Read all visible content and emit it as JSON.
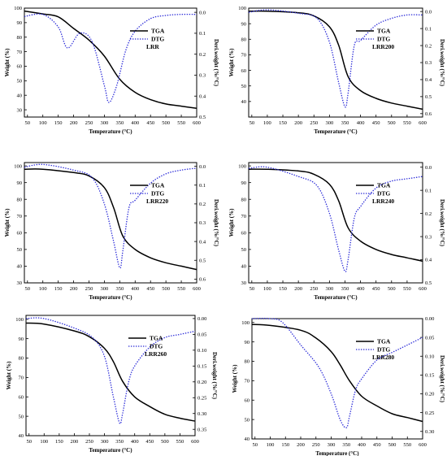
{
  "chart_data": [
    {
      "type": "line",
      "sample_label": "LRR",
      "xlabel": "Temperature (°C)",
      "ylabel": "Weight (%)",
      "y2label": "Deri.weight (%/°C)",
      "xlim": [
        40,
        600
      ],
      "xticks": [
        50,
        100,
        150,
        200,
        250,
        300,
        350,
        400,
        450,
        500,
        550,
        600
      ],
      "ylim": [
        25,
        100
      ],
      "yticks": [
        30,
        40,
        50,
        60,
        70,
        80,
        90,
        100
      ],
      "y2lim": [
        -0.02,
        0.5
      ],
      "y2ticks": [
        {
          "v": 0.0,
          "label": "0.0"
        },
        {
          "v": 0.1,
          "label": "0.1"
        },
        {
          "v": 0.2,
          "label": "0.2"
        },
        {
          "v": 0.3,
          "label": "0.3"
        },
        {
          "v": 0.4,
          "label": "0.4"
        },
        {
          "v": 0.5,
          "label": "0.5"
        }
      ],
      "y2_inverted": true,
      "legend": [
        "TGA",
        "DTG"
      ],
      "series": [
        {
          "name": "TGA",
          "axis": "left",
          "color": "#000000",
          "dash": "solid",
          "x": [
            40,
            100,
            150,
            200,
            250,
            300,
            350,
            400,
            450,
            500,
            550,
            600
          ],
          "y": [
            98,
            96,
            94,
            86,
            78,
            67,
            51,
            42,
            37,
            34,
            32.5,
            31
          ]
        },
        {
          "name": "DTG",
          "axis": "right",
          "color": "#2a2ad8",
          "dash": "dotted",
          "x": [
            40,
            100,
            150,
            180,
            220,
            260,
            300,
            315,
            340,
            370,
            400,
            450,
            500,
            550,
            600
          ],
          "y": [
            0.02,
            0.01,
            0.07,
            0.17,
            0.1,
            0.14,
            0.35,
            0.43,
            0.35,
            0.18,
            0.09,
            0.03,
            0.015,
            0.01,
            0.01
          ]
        }
      ]
    },
    {
      "type": "line",
      "sample_label": "LRR200",
      "xlabel": "Temperature (°C)",
      "ylabel": "Weight (%)",
      "y2label": "Deri.weight (%/°C)",
      "xlim": [
        40,
        600
      ],
      "xticks": [
        50,
        100,
        150,
        200,
        250,
        300,
        350,
        400,
        450,
        500,
        550,
        600
      ],
      "ylim": [
        30,
        100
      ],
      "yticks": [
        40,
        50,
        60,
        70,
        80,
        90,
        100
      ],
      "y2lim": [
        -0.02,
        0.62
      ],
      "y2ticks": [
        {
          "v": 0.0,
          "label": "0.0"
        },
        {
          "v": 0.1,
          "label": "0.1"
        },
        {
          "v": 0.2,
          "label": "0.2"
        },
        {
          "v": 0.3,
          "label": "0.3"
        },
        {
          "v": 0.4,
          "label": "0.4"
        },
        {
          "v": 0.5,
          "label": "0.5"
        },
        {
          "v": 0.6,
          "label": "0.6"
        }
      ],
      "y2_inverted": true,
      "legend": [
        "TGA",
        "DTG"
      ],
      "series": [
        {
          "name": "TGA",
          "axis": "left",
          "color": "#000000",
          "dash": "solid",
          "x": [
            40,
            100,
            200,
            250,
            300,
            330,
            360,
            400,
            450,
            500,
            550,
            600
          ],
          "y": [
            98,
            98,
            97,
            95,
            88,
            76,
            56,
            47,
            42,
            39,
            37,
            35
          ]
        },
        {
          "name": "DTG",
          "axis": "right",
          "color": "#2a2ad8",
          "dash": "dotted",
          "x": [
            40,
            100,
            200,
            260,
            300,
            330,
            350,
            360,
            380,
            400,
            450,
            500,
            550,
            600
          ],
          "y": [
            0.005,
            -0.01,
            0.01,
            0.04,
            0.18,
            0.42,
            0.56,
            0.48,
            0.2,
            0.17,
            0.08,
            0.04,
            0.02,
            0.02
          ]
        }
      ]
    },
    {
      "type": "line",
      "sample_label": "LRR220",
      "xlabel": "Temperature (°C)",
      "ylabel": "Weight (%)",
      "y2label": "Deri.weight (%/°C)",
      "xlim": [
        40,
        600
      ],
      "xticks": [
        50,
        100,
        150,
        200,
        250,
        300,
        350,
        400,
        450,
        500,
        550,
        600
      ],
      "ylim": [
        30,
        102
      ],
      "yticks": [
        30,
        40,
        50,
        60,
        70,
        80,
        90,
        100
      ],
      "y2lim": [
        -0.02,
        0.62
      ],
      "y2ticks": [
        {
          "v": 0.0,
          "label": "0.0"
        },
        {
          "v": 0.1,
          "label": "0.1"
        },
        {
          "v": 0.2,
          "label": "0.2"
        },
        {
          "v": 0.3,
          "label": "0.3"
        },
        {
          "v": 0.4,
          "label": "0.4"
        },
        {
          "v": 0.5,
          "label": "0.5"
        },
        {
          "v": 0.6,
          "label": "0.6"
        }
      ],
      "y2_inverted": true,
      "legend": [
        "TGA",
        "DTG"
      ],
      "series": [
        {
          "name": "TGA",
          "axis": "left",
          "color": "#000000",
          "dash": "solid",
          "x": [
            40,
            100,
            200,
            250,
            300,
            330,
            360,
            400,
            450,
            500,
            550,
            600
          ],
          "y": [
            98,
            98,
            96,
            94,
            87,
            75,
            58,
            50,
            45,
            42,
            40,
            38
          ]
        },
        {
          "name": "DTG",
          "axis": "right",
          "color": "#2a2ad8",
          "dash": "dotted",
          "x": [
            40,
            100,
            200,
            260,
            300,
            330,
            350,
            360,
            380,
            400,
            450,
            500,
            550,
            600
          ],
          "y": [
            0.005,
            -0.01,
            0.02,
            0.06,
            0.2,
            0.4,
            0.54,
            0.45,
            0.22,
            0.18,
            0.09,
            0.04,
            0.02,
            0.01
          ]
        }
      ]
    },
    {
      "type": "line",
      "sample_label": "LRR240",
      "xlabel": "Temperature (°C)",
      "ylabel": "Weight (%)",
      "y2label": "Deri.weight (%/°C)",
      "xlim": [
        40,
        600
      ],
      "xticks": [
        50,
        100,
        150,
        200,
        250,
        300,
        350,
        400,
        450,
        500,
        550,
        600
      ],
      "ylim": [
        30,
        102
      ],
      "yticks": [
        30,
        40,
        50,
        60,
        70,
        80,
        90,
        100
      ],
      "y2lim": [
        -0.02,
        0.5
      ],
      "y2ticks": [
        {
          "v": 0.0,
          "label": "0.0"
        },
        {
          "v": 0.1,
          "label": "0.1"
        },
        {
          "v": 0.2,
          "label": "0.2"
        },
        {
          "v": 0.3,
          "label": "0.3"
        },
        {
          "v": 0.4,
          "label": "0.4"
        },
        {
          "v": 0.5,
          "label": "0.5"
        }
      ],
      "y2_inverted": true,
      "legend": [
        "TGA",
        "DTG"
      ],
      "series": [
        {
          "name": "TGA",
          "axis": "left",
          "color": "#000000",
          "dash": "solid",
          "x": [
            40,
            100,
            200,
            250,
            300,
            330,
            360,
            400,
            450,
            500,
            550,
            600
          ],
          "y": [
            98,
            98,
            97,
            95,
            89,
            79,
            63,
            55,
            50,
            47,
            45,
            43
          ]
        },
        {
          "name": "DTG",
          "axis": "right",
          "color": "#2a2ad8",
          "dash": "dotted",
          "x": [
            40,
            100,
            200,
            260,
            300,
            330,
            350,
            360,
            380,
            400,
            450,
            500,
            550,
            600
          ],
          "y": [
            0.005,
            0.0,
            0.04,
            0.08,
            0.2,
            0.36,
            0.45,
            0.4,
            0.22,
            0.17,
            0.09,
            0.06,
            0.05,
            0.04
          ]
        }
      ]
    },
    {
      "type": "line",
      "sample_label": "LRR260",
      "xlabel": "Temperature (°C)",
      "ylabel": "Weight (%)",
      "y2label": "Deri.weight (%/°C)",
      "xlim": [
        40,
        600
      ],
      "xticks": [
        50,
        100,
        150,
        200,
        250,
        300,
        350,
        400,
        450,
        500,
        550,
        600
      ],
      "ylim": [
        40,
        102
      ],
      "yticks": [
        40,
        50,
        60,
        70,
        80,
        90,
        100
      ],
      "y2lim": [
        -0.01,
        0.37
      ],
      "y2ticks": [
        {
          "v": 0.0,
          "label": "0.00"
        },
        {
          "v": 0.05,
          "label": "0.05"
        },
        {
          "v": 0.1,
          "label": "0.10"
        },
        {
          "v": 0.15,
          "label": "0.15"
        },
        {
          "v": 0.2,
          "label": "0.20"
        },
        {
          "v": 0.25,
          "label": "0.25"
        },
        {
          "v": 0.3,
          "label": "0.30"
        },
        {
          "v": 0.35,
          "label": "0.35"
        }
      ],
      "y2_inverted": true,
      "legend": [
        "TGA",
        "DTG"
      ],
      "series": [
        {
          "name": "TGA",
          "axis": "left",
          "color": "#000000",
          "dash": "solid",
          "x": [
            40,
            100,
            200,
            250,
            300,
            330,
            360,
            400,
            450,
            500,
            550,
            600
          ],
          "y": [
            98,
            97.5,
            94,
            91,
            85,
            78,
            68,
            60,
            55,
            51,
            49,
            47.5
          ]
        },
        {
          "name": "DTG",
          "axis": "right",
          "color": "#2a2ad8",
          "dash": "dotted",
          "x": [
            40,
            100,
            200,
            260,
            300,
            330,
            350,
            360,
            380,
            400,
            450,
            500,
            550,
            600
          ],
          "y": [
            0.0,
            0.0,
            0.03,
            0.06,
            0.12,
            0.25,
            0.33,
            0.3,
            0.2,
            0.15,
            0.09,
            0.06,
            0.05,
            0.04
          ]
        }
      ]
    },
    {
      "type": "line",
      "sample_label": "LRR280",
      "xlabel": "Temperature (°C)",
      "ylabel": "Weight (%)",
      "y2label": "Deri.weight (%/°C)",
      "xlim": [
        40,
        600
      ],
      "xticks": [
        50,
        100,
        150,
        200,
        250,
        300,
        350,
        400,
        450,
        500,
        550,
        600
      ],
      "ylim": [
        40,
        102
      ],
      "yticks": [
        40,
        50,
        60,
        70,
        80,
        90,
        100
      ],
      "y2lim": [
        0.0,
        0.32
      ],
      "y2ticks": [
        {
          "v": 0.0,
          "label": "0.00"
        },
        {
          "v": 0.05,
          "label": "0.05"
        },
        {
          "v": 0.1,
          "label": "0.10"
        },
        {
          "v": 0.15,
          "label": "0.15"
        },
        {
          "v": 0.2,
          "label": "0.20"
        },
        {
          "v": 0.25,
          "label": "0.25"
        },
        {
          "v": 0.3,
          "label": "0.30"
        }
      ],
      "y2_inverted": true,
      "legend": [
        "TGA",
        "DTG"
      ],
      "series": [
        {
          "name": "TGA",
          "axis": "left",
          "color": "#000000",
          "dash": "solid",
          "x": [
            40,
            100,
            200,
            250,
            300,
            330,
            360,
            400,
            450,
            500,
            550,
            600
          ],
          "y": [
            99,
            98.5,
            96,
            92,
            85,
            78,
            70,
            62,
            57,
            53,
            51,
            49
          ]
        },
        {
          "name": "DTG",
          "axis": "right",
          "color": "#2a2ad8",
          "dash": "dotted",
          "x": [
            40,
            100,
            140,
            200,
            260,
            300,
            330,
            350,
            360,
            380,
            400,
            450,
            500,
            550,
            600
          ],
          "y": [
            0.0,
            0.0,
            0.01,
            0.07,
            0.13,
            0.2,
            0.27,
            0.29,
            0.26,
            0.19,
            0.16,
            0.11,
            0.09,
            0.07,
            0.05
          ]
        }
      ]
    }
  ]
}
